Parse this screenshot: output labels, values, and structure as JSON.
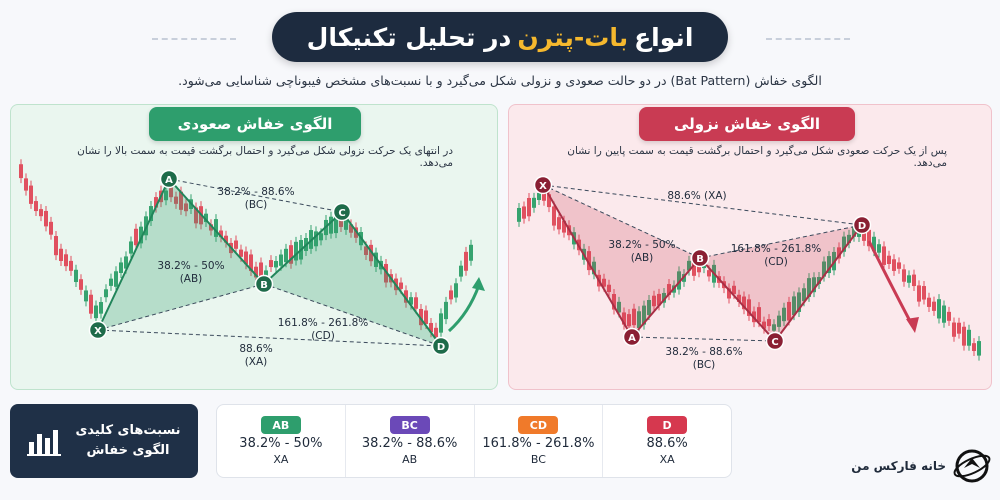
{
  "header": {
    "title_start": "انواع",
    "title_highlight": "بات-پترن",
    "title_end": "در تحلیل تکنیکال",
    "subtitle": "الگوی خفاش (Bat Pattern) در دو حالت صعودی و نزولی شکل می‌گیرد و با نسبت‌های مشخص فیبوناچی شناسایی می‌شود."
  },
  "bullish": {
    "title": "الگوی خفاش صعودی",
    "desc": "در انتهای یک حرکت نزولی شکل می‌گیرد و احتمال برگشت قیمت به سمت بالا را نشان می‌دهد.",
    "points": {
      "X": "X",
      "A": "A",
      "B": "B",
      "C": "C",
      "D": "D"
    },
    "ratio_bc": "38.2% - 88.6%",
    "ratio_bc_leg": "(BC)",
    "ratio_ab": "38.2% - 50%",
    "ratio_ab_leg": "(AB)",
    "ratio_cd": "161.8% - 261.8%",
    "ratio_cd_leg": "(CD)",
    "ratio_xa": "88.6%",
    "ratio_xa_leg": "(XA)"
  },
  "bearish": {
    "title": "الگوی خفاش نزولی",
    "desc": "پس از یک حرکت صعودی شکل می‌گیرد و احتمال برگشت قیمت به سمت پایین را نشان می‌دهد.",
    "points": {
      "X": "X",
      "A": "A",
      "B": "B",
      "C": "C",
      "D": "D"
    },
    "ratio_xa": "88.6% (XA)",
    "ratio_ab": "38.2% - 50%",
    "ratio_ab_leg": "(AB)",
    "ratio_cd": "161.8% - 261.8%",
    "ratio_cd_leg": "(CD)",
    "ratio_bc": "38.2% - 88.6%",
    "ratio_bc_leg": "(BC)"
  },
  "key": {
    "line1": "نسبت‌های کلیدی",
    "line2": "الگوی خفاش"
  },
  "ratios": [
    {
      "badge": "AB",
      "color": "#2e9e6d",
      "value": "38.2% - 50%",
      "leg": "XA"
    },
    {
      "badge": "BC",
      "color": "#6b49b8",
      "value": "38.2% - 88.6%",
      "leg": "AB"
    },
    {
      "badge": "CD",
      "color": "#f07a2a",
      "value": "161.8% - 261.8%",
      "leg": "BC"
    },
    {
      "badge": "D",
      "color": "#d6384f",
      "value": "88.6%",
      "leg": "XA"
    }
  ],
  "brand": {
    "name": "خانه فارکس من"
  },
  "colors": {
    "green": "#2e9e6d",
    "red": "#c93b53",
    "navy": "#1d2b3f",
    "gold": "#f5b82e"
  }
}
